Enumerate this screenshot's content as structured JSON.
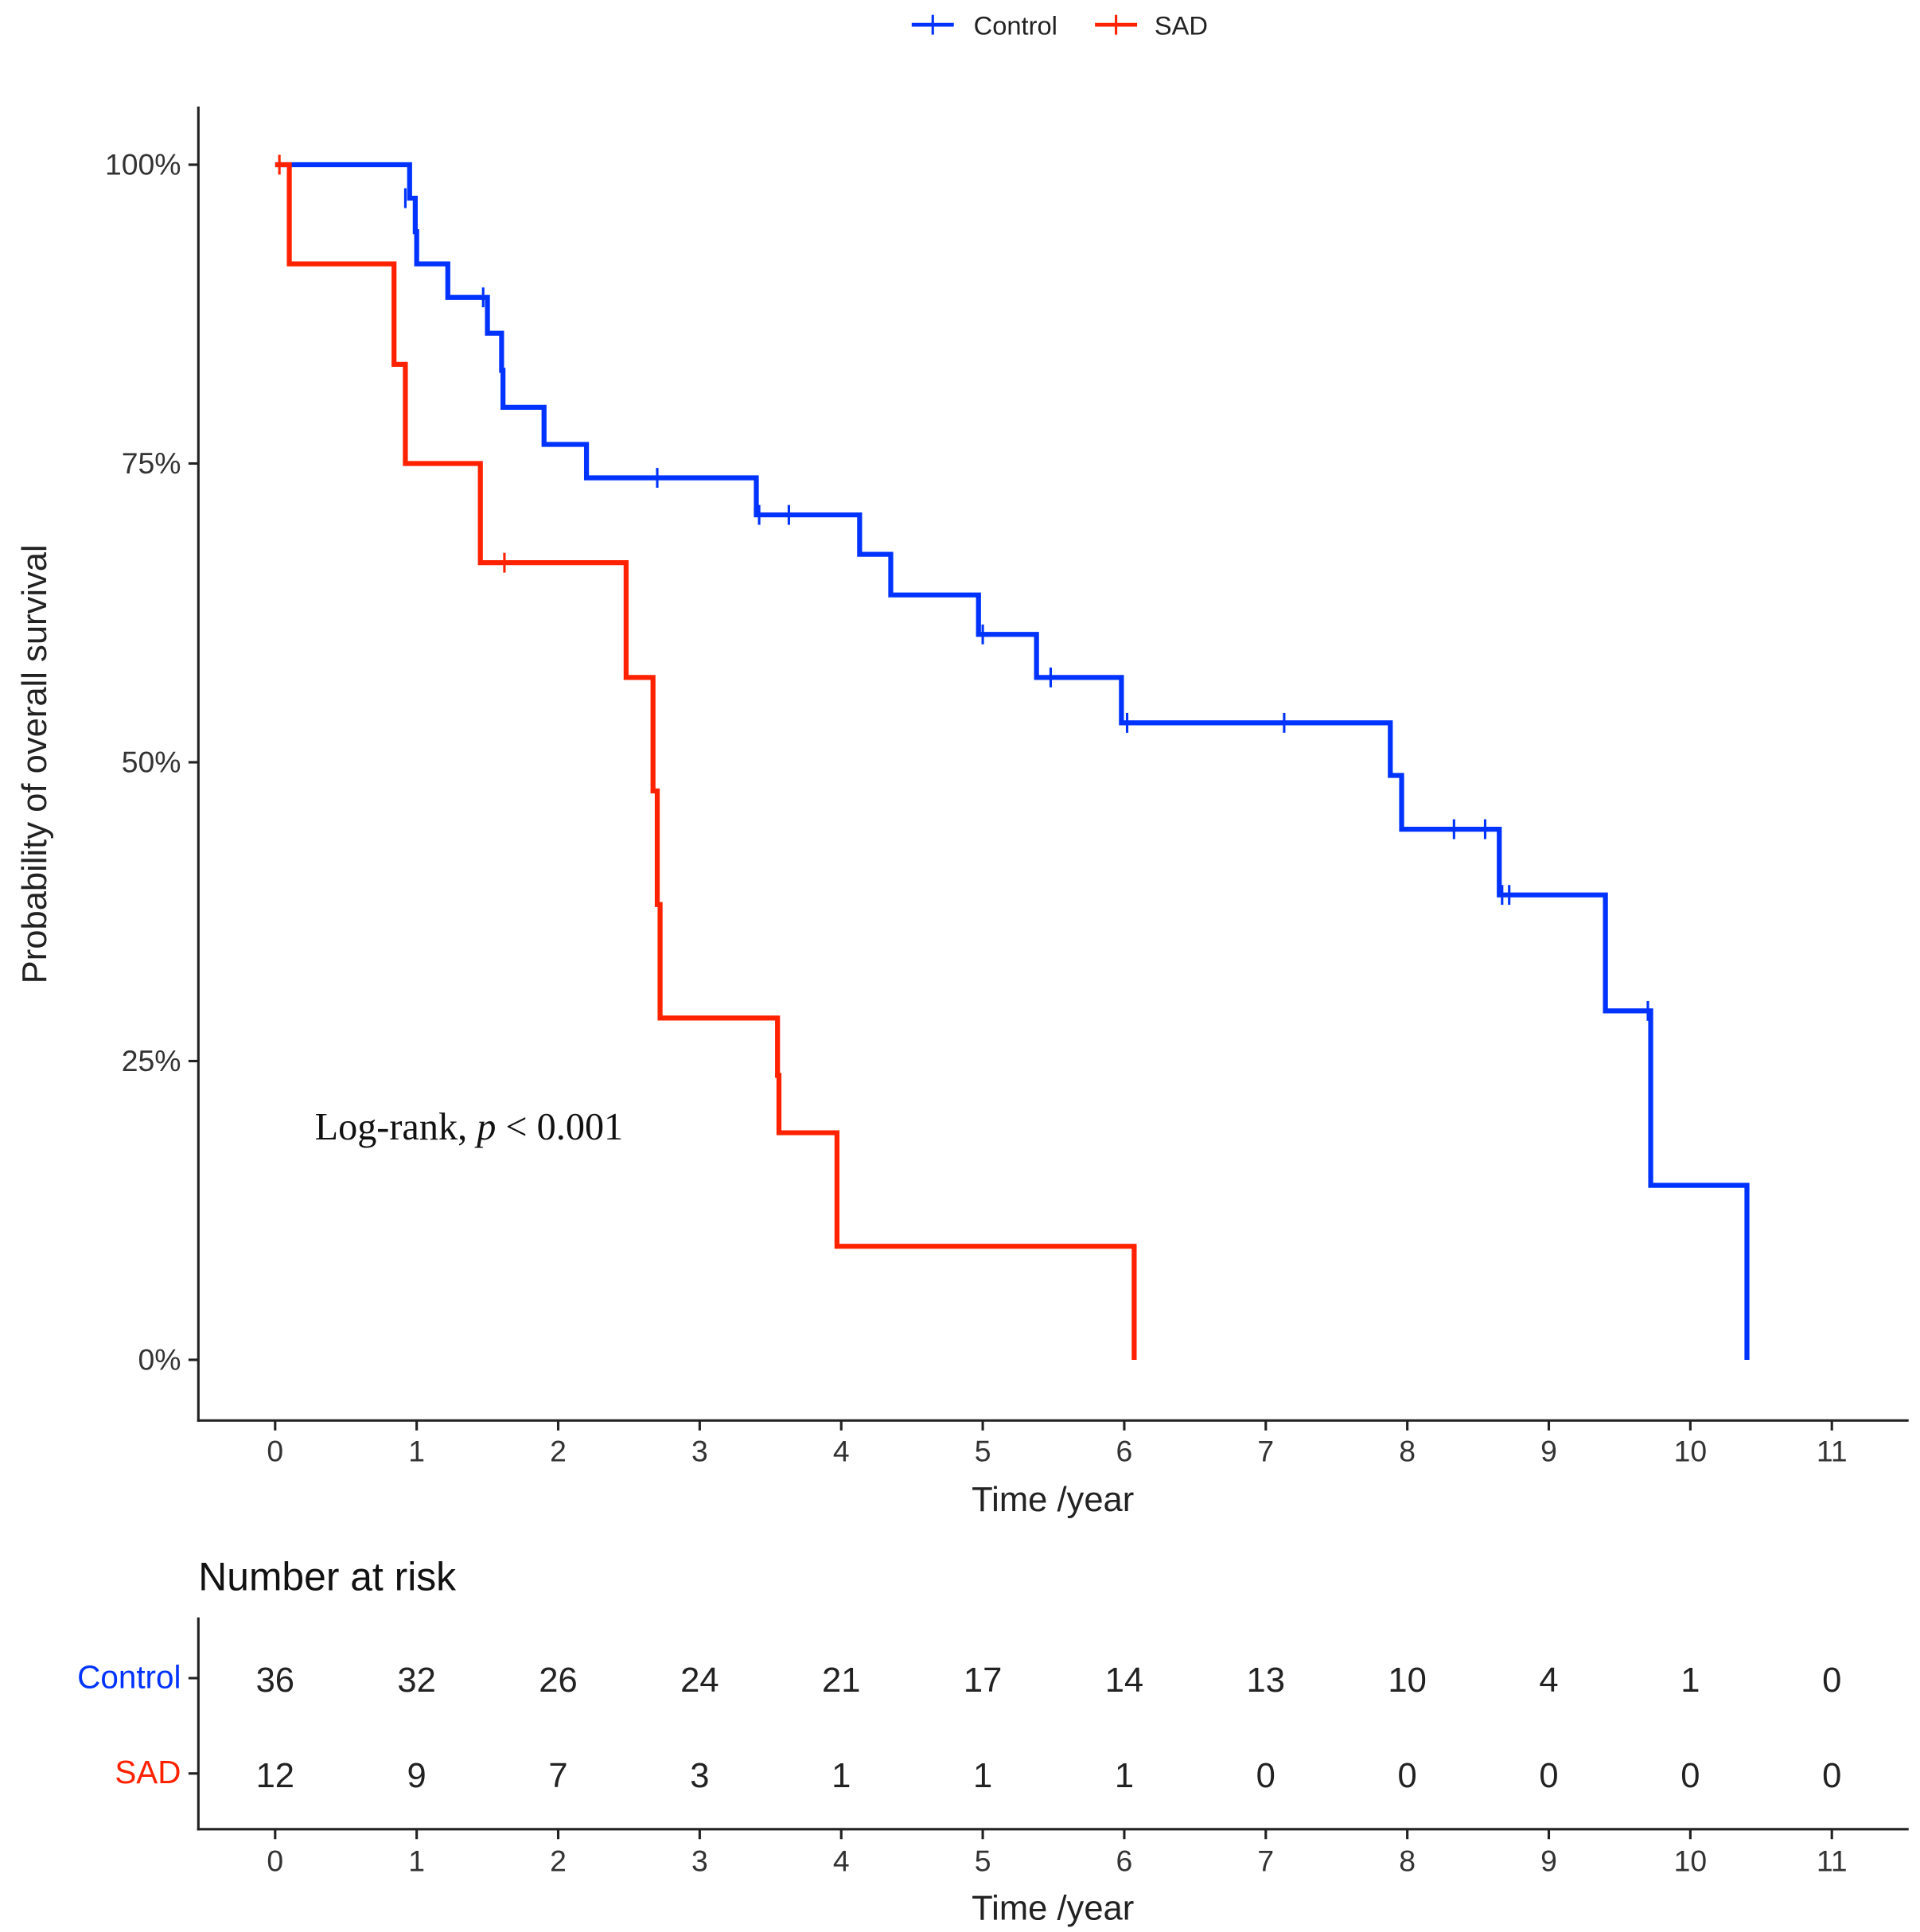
{
  "chart_data": {
    "type": "line",
    "subtype": "kaplan-meier",
    "legend": {
      "position": "top",
      "entries": [
        "Control",
        "SAD"
      ]
    },
    "xlabel": "Time /year",
    "ylabel": "Probability of overall survival",
    "xlim": [
      0,
      11
    ],
    "ylim": [
      0,
      1
    ],
    "x_ticks": [
      "0",
      "1",
      "2",
      "3",
      "4",
      "5",
      "6",
      "7",
      "8",
      "9",
      "10",
      "11"
    ],
    "y_ticks": [
      {
        "v": 0,
        "label": "0%"
      },
      {
        "v": 0.25,
        "label": "25%"
      },
      {
        "v": 0.5,
        "label": "50%"
      },
      {
        "v": 0.75,
        "label": "75%"
      },
      {
        "v": 1,
        "label": "100%"
      }
    ],
    "annotation": {
      "prefix": "Log-rank, ",
      "italic": "p",
      "suffix": " < 0.001"
    },
    "series": [
      {
        "name": "Control",
        "color": "#0033ff",
        "steps": [
          [
            0,
            1.0
          ],
          [
            0.95,
            0.972
          ],
          [
            0.99,
            0.944
          ],
          [
            1.0,
            0.917
          ],
          [
            1.22,
            0.889
          ],
          [
            1.5,
            0.859
          ],
          [
            1.6,
            0.828
          ],
          [
            1.61,
            0.797
          ],
          [
            1.9,
            0.766
          ],
          [
            2.2,
            0.738
          ],
          [
            3.4,
            0.707
          ],
          [
            4.13,
            0.674
          ],
          [
            4.35,
            0.64
          ],
          [
            4.97,
            0.607
          ],
          [
            5.38,
            0.571
          ],
          [
            5.98,
            0.533
          ],
          [
            7.88,
            0.489
          ],
          [
            7.96,
            0.444
          ],
          [
            8.65,
            0.389
          ],
          [
            9.4,
            0.292
          ],
          [
            9.72,
            0.146
          ],
          [
            10.4,
            0.0
          ]
        ],
        "censored": [
          [
            0.92,
            0.972
          ],
          [
            1.47,
            0.889
          ],
          [
            2.7,
            0.738
          ],
          [
            3.42,
            0.707
          ],
          [
            3.63,
            0.707
          ],
          [
            5.0,
            0.607
          ],
          [
            5.48,
            0.571
          ],
          [
            6.02,
            0.533
          ],
          [
            7.13,
            0.533
          ],
          [
            8.33,
            0.444
          ],
          [
            8.55,
            0.444
          ],
          [
            8.67,
            0.389
          ],
          [
            8.72,
            0.389
          ],
          [
            9.7,
            0.292
          ]
        ]
      },
      {
        "name": "SAD",
        "color": "#ff2200",
        "steps": [
          [
            0,
            1.0
          ],
          [
            0.1,
            0.917
          ],
          [
            0.84,
            0.833
          ],
          [
            0.92,
            0.75
          ],
          [
            1.45,
            0.667
          ],
          [
            2.48,
            0.571
          ],
          [
            2.67,
            0.476
          ],
          [
            2.7,
            0.381
          ],
          [
            2.72,
            0.286
          ],
          [
            3.55,
            0.238
          ],
          [
            3.56,
            0.19
          ],
          [
            3.97,
            0.095
          ],
          [
            6.07,
            0.0
          ]
        ],
        "censored": [
          [
            0.03,
            1.0
          ],
          [
            1.62,
            0.667
          ]
        ]
      }
    ],
    "risk_table": {
      "title": "Number at risk",
      "xlabel": "Time /year",
      "times": [
        "0",
        "1",
        "2",
        "3",
        "4",
        "5",
        "6",
        "7",
        "8",
        "9",
        "10",
        "11"
      ],
      "rows": [
        {
          "name": "Control",
          "color": "#0033ff",
          "values": [
            "36",
            "32",
            "26",
            "24",
            "21",
            "17",
            "14",
            "13",
            "10",
            "4",
            "1",
            "0"
          ]
        },
        {
          "name": "SAD",
          "color": "#ff2200",
          "values": [
            "12",
            "9",
            "7",
            "3",
            "1",
            "1",
            "1",
            "0",
            "0",
            "0",
            "0",
            "0"
          ]
        }
      ]
    }
  }
}
